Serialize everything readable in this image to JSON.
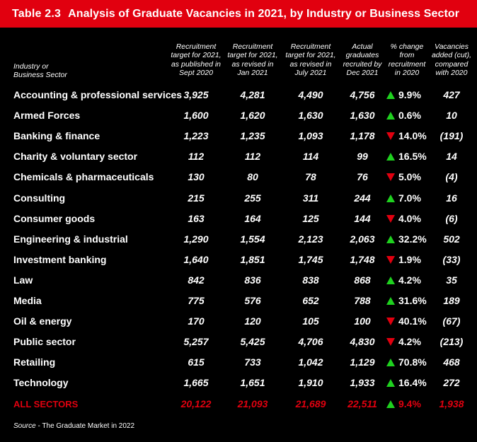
{
  "title": {
    "number": "Table 2.3",
    "text": "Analysis of Graduate Vacancies in 2021, by Industry or Business Sector"
  },
  "headers": {
    "industry": [
      "Industry or",
      "Business Sector"
    ],
    "columns": [
      [
        "Recruitment",
        "target for 2021,",
        "as published in",
        "Sept 2020"
      ],
      [
        "Recruitment",
        "target for 2021,",
        "as revised in",
        "Jan 2021"
      ],
      [
        "Recruitment",
        "target for 2021,",
        "as revised in",
        "July 2021"
      ],
      [
        "Actual",
        "graduates",
        "recruited by",
        "Dec 2021"
      ],
      [
        "% change",
        "from",
        "recruitment",
        "in 2020"
      ],
      [
        "Vacancies",
        "added (cut),",
        "compared",
        "with 2020"
      ]
    ]
  },
  "rows": [
    {
      "label": "Accounting & professional services",
      "values": [
        "3,925",
        "4,281",
        "4,490",
        "4,756"
      ],
      "dir": "up",
      "change": "9.9%",
      "added": "427"
    },
    {
      "label": "Armed Forces",
      "values": [
        "1,600",
        "1,620",
        "1,630",
        "1,630"
      ],
      "dir": "up",
      "change": "0.6%",
      "added": "10"
    },
    {
      "label": "Banking & finance",
      "values": [
        "1,223",
        "1,235",
        "1,093",
        "1,178"
      ],
      "dir": "down",
      "change": "14.0%",
      "added": "(191)"
    },
    {
      "label": "Charity & voluntary sector",
      "values": [
        "112",
        "112",
        "114",
        "99"
      ],
      "dir": "up",
      "change": "16.5%",
      "added": "14"
    },
    {
      "label": "Chemicals & pharmaceuticals",
      "values": [
        "130",
        "80",
        "78",
        "76"
      ],
      "dir": "down",
      "change": "5.0%",
      "added": "(4)"
    },
    {
      "label": "Consulting",
      "values": [
        "215",
        "255",
        "311",
        "244"
      ],
      "dir": "up",
      "change": "7.0%",
      "added": "16"
    },
    {
      "label": "Consumer goods",
      "values": [
        "163",
        "164",
        "125",
        "144"
      ],
      "dir": "down",
      "change": "4.0%",
      "added": "(6)"
    },
    {
      "label": "Engineering & industrial",
      "values": [
        "1,290",
        "1,554",
        "2,123",
        "2,063"
      ],
      "dir": "up",
      "change": "32.2%",
      "added": "502"
    },
    {
      "label": "Investment banking",
      "values": [
        "1,640",
        "1,851",
        "1,745",
        "1,748"
      ],
      "dir": "down",
      "change": "1.9%",
      "added": "(33)"
    },
    {
      "label": "Law",
      "values": [
        "842",
        "836",
        "838",
        "868"
      ],
      "dir": "up",
      "change": "4.2%",
      "added": "35"
    },
    {
      "label": "Media",
      "values": [
        "775",
        "576",
        "652",
        "788"
      ],
      "dir": "up",
      "change": "31.6%",
      "added": "189"
    },
    {
      "label": "Oil & energy",
      "values": [
        "170",
        "120",
        "105",
        "100"
      ],
      "dir": "down",
      "change": "40.1%",
      "added": "(67)"
    },
    {
      "label": "Public sector",
      "values": [
        "5,257",
        "5,425",
        "4,706",
        "4,830"
      ],
      "dir": "down",
      "change": "4.2%",
      "added": "(213)"
    },
    {
      "label": "Retailing",
      "values": [
        "615",
        "733",
        "1,042",
        "1,129"
      ],
      "dir": "up",
      "change": "70.8%",
      "added": "468"
    },
    {
      "label": "Technology",
      "values": [
        "1,665",
        "1,651",
        "1,910",
        "1,933"
      ],
      "dir": "up",
      "change": "16.4%",
      "added": "272"
    }
  ],
  "total": {
    "label": "ALL SECTORS",
    "values": [
      "20,122",
      "21,093",
      "21,689",
      "22,511"
    ],
    "dir": "up",
    "change": "9.4%",
    "added": "1,938"
  },
  "source": {
    "label": "Source",
    "text": " - The Graduate Market in 2022"
  },
  "colors": {
    "title_bg": "#e1000f",
    "up": "#1fd11f",
    "down": "#e1000f",
    "background": "#000000"
  }
}
